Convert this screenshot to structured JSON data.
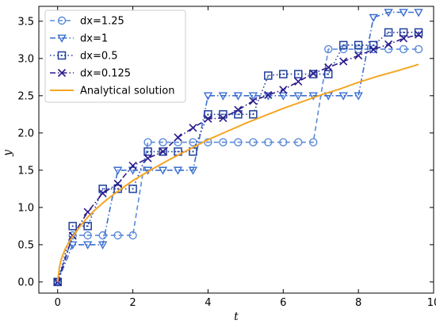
{
  "chart_data": {
    "type": "line",
    "xlabel": "t",
    "ylabel": "y",
    "xlim": [
      -0.5,
      10
    ],
    "ylim": [
      -0.15,
      3.7
    ],
    "xticks": [
      0,
      2,
      4,
      6,
      8,
      10
    ],
    "yticks": [
      0.0,
      0.5,
      1.0,
      1.5,
      2.0,
      2.5,
      3.0,
      3.5
    ],
    "ytick_labels": [
      "0.0",
      "0.5",
      "1.0",
      "1.5",
      "2.0",
      "2.5",
      "3.0",
      "3.5"
    ],
    "grid": false,
    "legend_position": "top-left",
    "series": [
      {
        "name": "dx=1.25",
        "color": "#5b8bd9",
        "dash": "dashed",
        "marker": "circle",
        "x": [
          0,
          0.4,
          0.8,
          1.2,
          1.6,
          2.0,
          2.4,
          2.8,
          3.2,
          3.6,
          4.0,
          4.4,
          4.8,
          5.2,
          5.6,
          6.0,
          6.4,
          6.8,
          7.2,
          7.6,
          8.0,
          8.4,
          8.8,
          9.2,
          9.6
        ],
        "y": [
          0,
          0.625,
          0.625,
          0.625,
          0.625,
          0.625,
          1.875,
          1.875,
          1.875,
          1.875,
          1.875,
          1.875,
          1.875,
          1.875,
          1.875,
          1.875,
          1.875,
          1.875,
          3.125,
          3.125,
          3.125,
          3.125,
          3.125,
          3.125,
          3.125
        ]
      },
      {
        "name": "dx=1",
        "color": "#3a6fd0",
        "dash": "dashdot",
        "marker": "triangle-down",
        "x": [
          0,
          0.4,
          0.8,
          1.2,
          1.6,
          2.0,
          2.4,
          2.8,
          3.2,
          3.6,
          4.0,
          4.4,
          4.8,
          5.2,
          5.6,
          6.0,
          6.4,
          6.8,
          7.2,
          7.6,
          8.0,
          8.4,
          8.8,
          9.2,
          9.6
        ],
        "y": [
          0,
          0.5,
          0.5,
          0.5,
          1.5,
          1.5,
          1.5,
          1.5,
          1.5,
          1.5,
          2.5,
          2.5,
          2.5,
          2.5,
          2.5,
          2.5,
          2.5,
          2.5,
          2.5,
          2.5,
          2.5,
          3.55,
          3.62,
          3.62,
          3.62
        ]
      },
      {
        "name": "dx=0.5",
        "color": "#1f3f9c",
        "dash": "dotted",
        "marker": "square-dot",
        "x": [
          0,
          0.4,
          0.8,
          1.2,
          1.6,
          2.0,
          2.4,
          2.8,
          3.2,
          3.6,
          4.0,
          4.4,
          4.8,
          5.2,
          5.6,
          6.0,
          6.4,
          6.8,
          7.2,
          7.6,
          8.0,
          8.4,
          8.8,
          9.2,
          9.6
        ],
        "y": [
          0,
          0.75,
          0.75,
          1.25,
          1.25,
          1.25,
          1.75,
          1.75,
          1.75,
          1.75,
          2.25,
          2.25,
          2.25,
          2.25,
          2.77,
          2.79,
          2.79,
          2.79,
          2.79,
          3.18,
          3.18,
          3.18,
          3.35,
          3.35,
          3.35
        ]
      },
      {
        "name": "dx=0.125",
        "color": "#2a1b8c",
        "dash": "dashdot",
        "marker": "x",
        "x": [
          0,
          0.4,
          0.8,
          1.2,
          1.6,
          2.0,
          2.4,
          2.8,
          3.2,
          3.6,
          4.0,
          4.4,
          4.8,
          5.2,
          5.6,
          6.0,
          6.4,
          6.8,
          7.2,
          7.6,
          8.0,
          8.4,
          8.8,
          9.2,
          9.6
        ],
        "y": [
          0,
          0.62,
          0.94,
          1.19,
          1.32,
          1.56,
          1.66,
          1.75,
          1.94,
          2.07,
          2.19,
          2.2,
          2.31,
          2.43,
          2.51,
          2.58,
          2.69,
          2.8,
          2.88,
          2.96,
          3.04,
          3.12,
          3.19,
          3.27,
          3.32
        ]
      },
      {
        "name": "Analytical solution",
        "color": "#f5a623",
        "dash": "solid",
        "marker": "none",
        "x": [
          0,
          0.05,
          0.1,
          0.2,
          0.3,
          0.4,
          0.6,
          0.8,
          1.0,
          1.25,
          1.5,
          1.75,
          2.0,
          2.5,
          3.0,
          3.5,
          4.0,
          4.5,
          5.0,
          5.5,
          6.0,
          6.5,
          7.0,
          7.5,
          8.0,
          8.5,
          9.0,
          9.6
        ],
        "y": [
          0,
          0.21,
          0.31,
          0.44,
          0.53,
          0.61,
          0.75,
          0.87,
          0.97,
          1.08,
          1.18,
          1.27,
          1.36,
          1.51,
          1.65,
          1.78,
          1.91,
          2.02,
          2.13,
          2.23,
          2.33,
          2.42,
          2.51,
          2.59,
          2.68,
          2.76,
          2.83,
          2.92
        ]
      }
    ]
  }
}
